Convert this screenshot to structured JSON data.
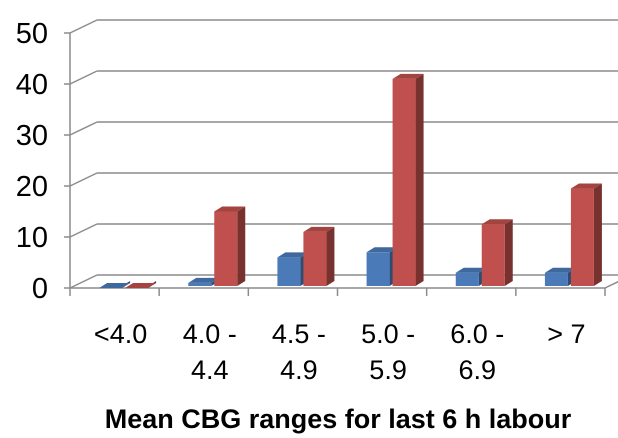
{
  "chart_data": {
    "type": "bar",
    "title": "",
    "xlabel": "Mean CBG ranges for last 6 h labour",
    "ylabel": "",
    "ylim": [
      0,
      50
    ],
    "yticks": [
      "0",
      "10",
      "20",
      "30",
      "40",
      "50"
    ],
    "categories": [
      [
        "<4.0"
      ],
      [
        "4.0 -",
        "4.4"
      ],
      [
        "4.5 -",
        "4.9"
      ],
      [
        "5.0 -",
        "5.9"
      ],
      [
        "6.0 -",
        "6.9"
      ],
      [
        "> 7"
      ]
    ],
    "series": [
      {
        "color": "#4a7ab8",
        "values": [
          0,
          1,
          6,
          7,
          3,
          3
        ]
      },
      {
        "color": "#c0504d",
        "values": [
          0,
          15,
          11,
          41,
          12.5,
          19.5
        ]
      }
    ],
    "grid": true,
    "style": "3d-clustered-bar"
  }
}
